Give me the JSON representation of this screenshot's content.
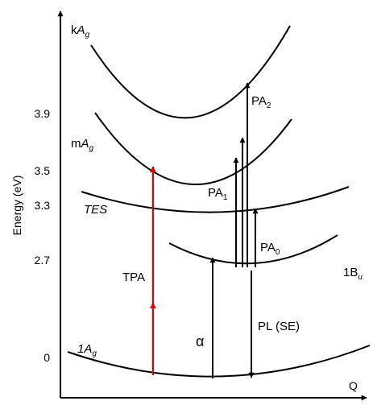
{
  "y_axis": {
    "label": "Energy (eV)",
    "ticks": [
      "3.9",
      "3.5",
      "3.3",
      "2.7",
      "0"
    ]
  },
  "x_axis": {
    "label": "Q"
  },
  "states": {
    "kAg": {
      "prefix": "k",
      "main": "A",
      "sub": "g"
    },
    "mAg": {
      "prefix": "m",
      "main": "A",
      "sub": "g"
    },
    "tes": "TES",
    "oneBu": {
      "main": "1B",
      "sub": "u"
    },
    "oneAg": {
      "main": "1A",
      "sub": "g"
    }
  },
  "transitions": {
    "pa2": {
      "main": "PA",
      "sub": "2"
    },
    "pa1": {
      "main": "PA",
      "sub": "1"
    },
    "pa0": {
      "main": "PA",
      "sub": "0"
    },
    "tpa": "TPA",
    "alpha": "α",
    "pl": "PL (SE)"
  },
  "colors": {
    "tpa_arrow": "#e00000",
    "lines": "#000000"
  }
}
